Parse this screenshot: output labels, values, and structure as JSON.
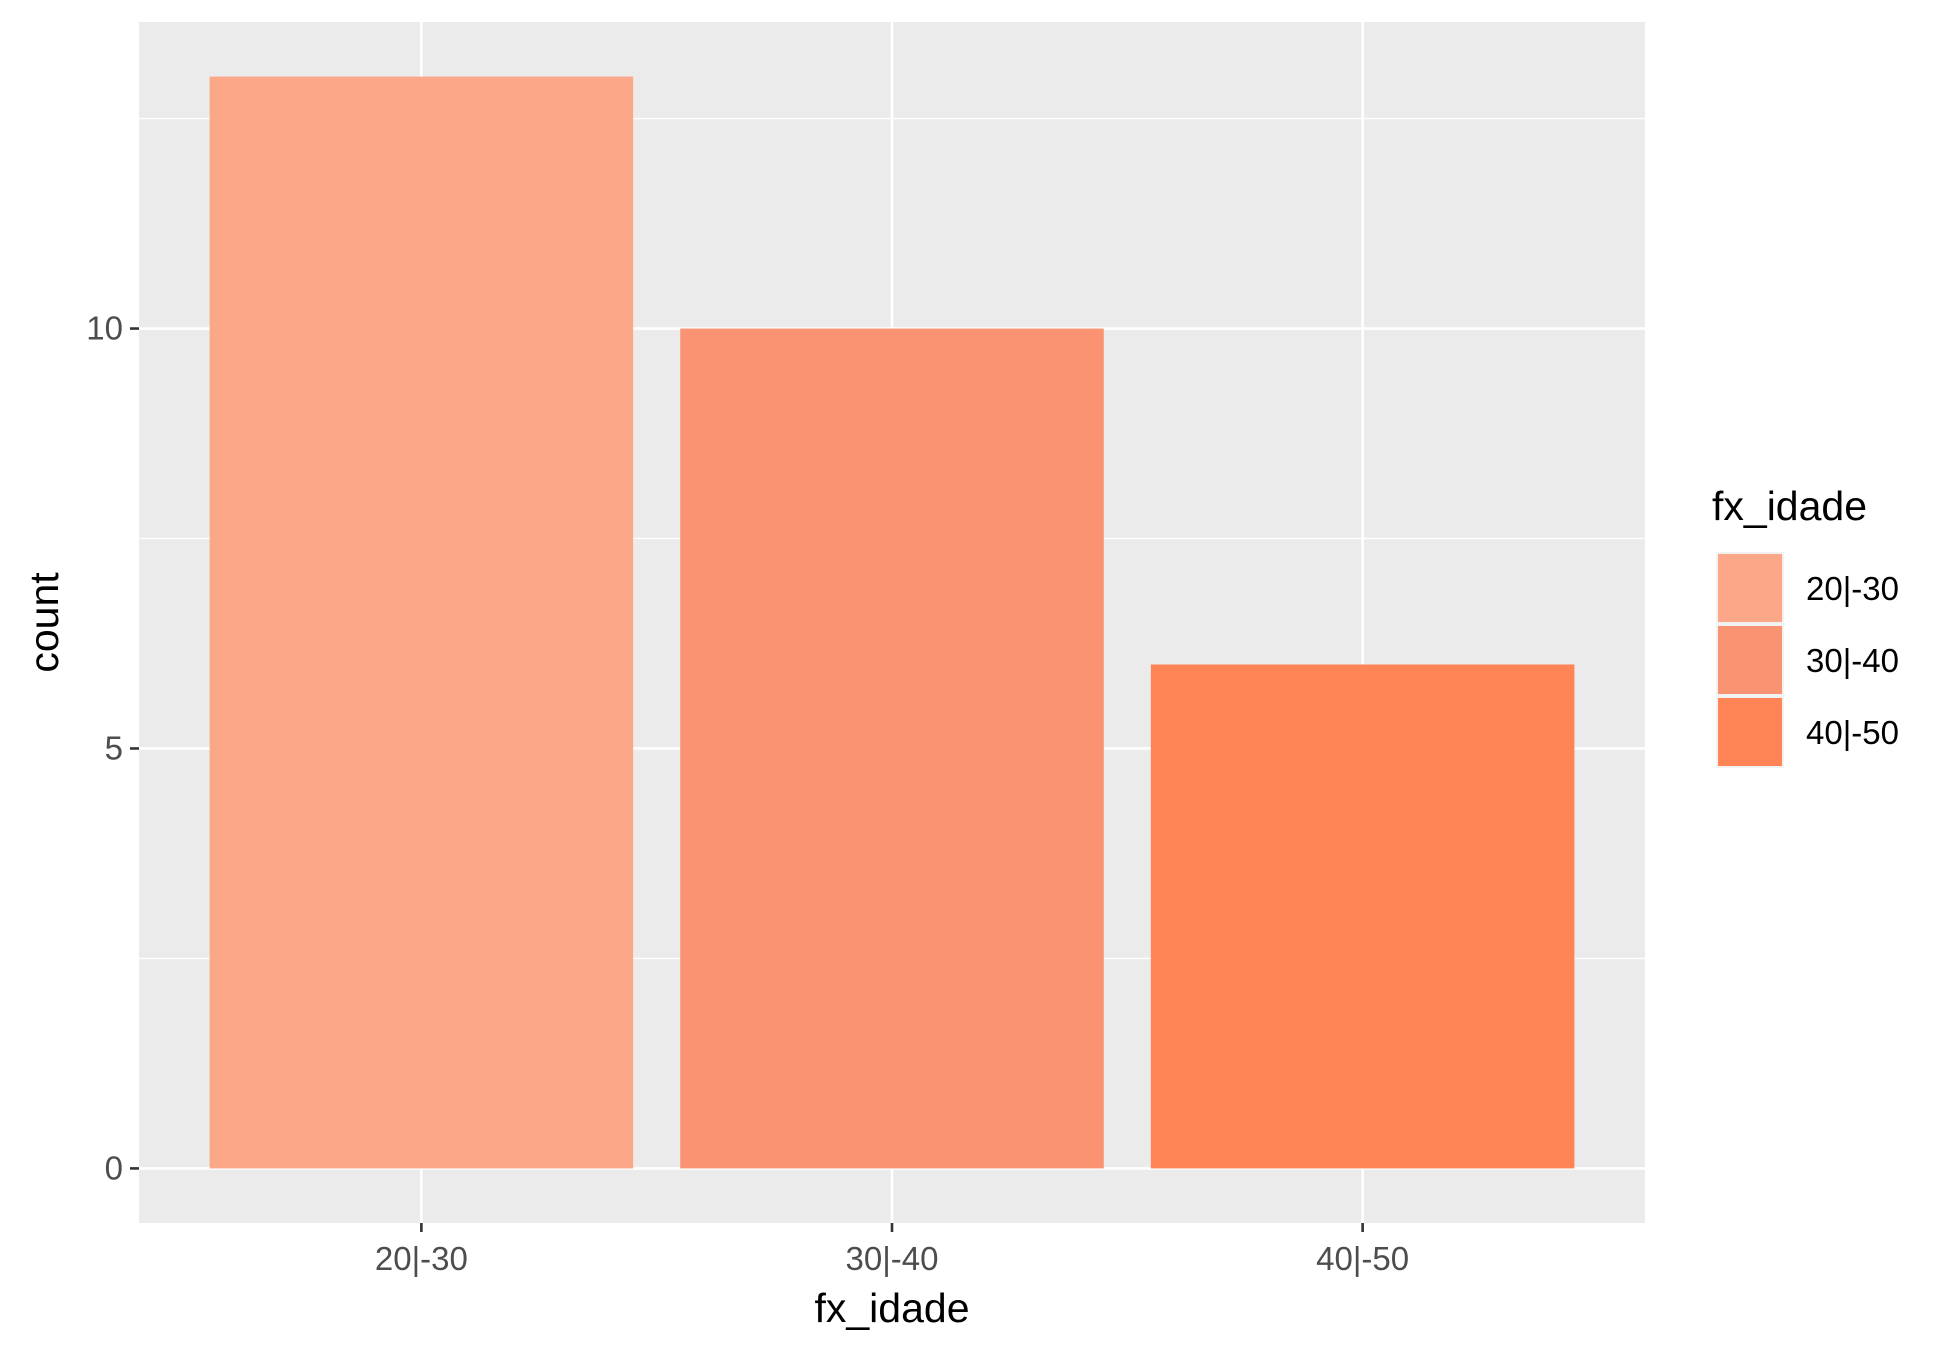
{
  "chart_data": {
    "type": "bar",
    "categories": [
      "20|-30",
      "30|-40",
      "40|-50"
    ],
    "values": [
      13,
      10,
      6
    ],
    "colors": [
      "#FCA787",
      "#F99371",
      "#FF8456"
    ],
    "xlabel": "fx_idade",
    "ylabel": "count",
    "ylim": [
      -0.65,
      13.65
    ],
    "yticks": [
      0,
      5,
      10
    ],
    "yticks_labels": [
      "0",
      "5",
      "10"
    ],
    "grid": true,
    "panel_background": "#EBEBEB",
    "grid_color": "#FFFFFF",
    "legend": {
      "title": "fx_idade",
      "position": "right",
      "entries": [
        "20|-30",
        "30|-40",
        "40|-50"
      ]
    }
  }
}
